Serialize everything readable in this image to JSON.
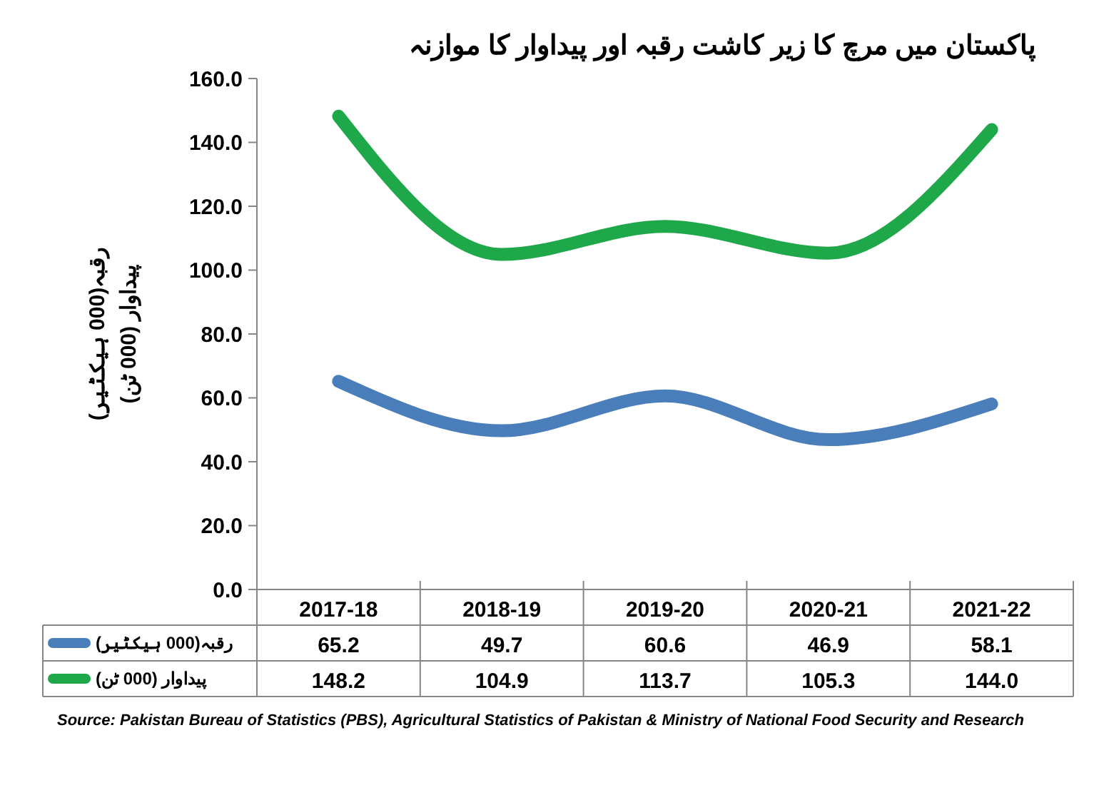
{
  "chart_data": {
    "type": "line",
    "title": "پاکستان میں مرچ کا زیر کاشت رقبہ اور پیداوار کا موازنہ",
    "ylabel": "رقبہ(000 ہیکٹیر)\nپیداوار (000 ٹن)",
    "categories": [
      "2017-18",
      "2018-19",
      "2019-20",
      "2020-21",
      "2021-22"
    ],
    "series": [
      {
        "name": "رقبہ(000 ہیکٹیر)",
        "color": "#4a7ebb",
        "values": [
          65.2,
          49.7,
          60.6,
          46.9,
          58.1
        ],
        "value_labels": [
          "65.2",
          "49.7",
          "60.6",
          "46.9",
          "58.1"
        ]
      },
      {
        "name": "پیداوار (000 ٹن)",
        "color": "#1fa84a",
        "values": [
          148.2,
          104.9,
          113.7,
          105.3,
          144.0
        ],
        "value_labels": [
          "148.2",
          "104.9",
          "113.7",
          "105.3",
          "144.0"
        ]
      }
    ],
    "ylim": [
      0,
      160
    ],
    "yticks": [
      {
        "value": 0,
        "label": "0.0"
      },
      {
        "value": 20,
        "label": "20.0"
      },
      {
        "value": 40,
        "label": "40.0"
      },
      {
        "value": 60,
        "label": "60.0"
      },
      {
        "value": 80,
        "label": "80.0"
      },
      {
        "value": 100,
        "label": "100.0"
      },
      {
        "value": 120,
        "label": "120.0"
      },
      {
        "value": 140,
        "label": "140.0"
      },
      {
        "value": 160,
        "label": "160.0"
      }
    ],
    "grid": false,
    "legend": "bottom",
    "marker": "none",
    "line_style": "solid",
    "annotations": [
      "Source: Pakistan Bureau of Statistics (PBS), Agricultural Statistics of Pakistan & Ministry of National Food Security and Research"
    ]
  }
}
